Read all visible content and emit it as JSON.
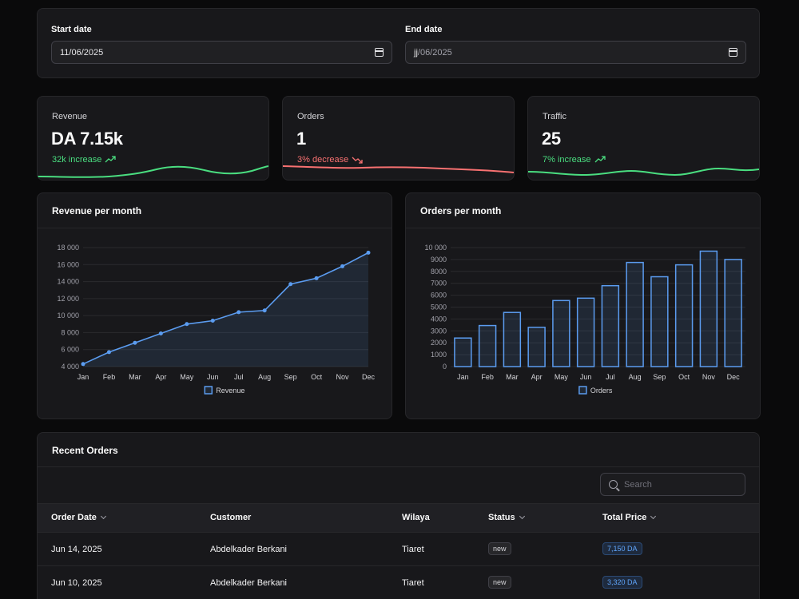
{
  "filters": {
    "start": {
      "label": "Start date",
      "value": "11/06/2025"
    },
    "end": {
      "label": "End date",
      "placeholder_day": "jj",
      "value_rest": "/06/2025"
    }
  },
  "stats": [
    {
      "title": "Revenue",
      "value": "DA 7.15k",
      "change": "32k increase",
      "trend": "up",
      "color": "#4ade80"
    },
    {
      "title": "Orders",
      "value": "1",
      "change": "3% decrease",
      "trend": "down",
      "color": "#f87171"
    },
    {
      "title": "Traffic",
      "value": "25",
      "change": "7% increase",
      "trend": "up",
      "color": "#4ade80"
    }
  ],
  "charts": {
    "revenue_title": "Revenue per month",
    "orders_title": "Orders per month"
  },
  "chart_data": [
    {
      "type": "line",
      "title": "Revenue per month",
      "categories": [
        "Jan",
        "Feb",
        "Mar",
        "Apr",
        "May",
        "Jun",
        "Jul",
        "Aug",
        "Sep",
        "Oct",
        "Nov",
        "Dec"
      ],
      "series": [
        {
          "name": "Revenue",
          "values": [
            4300,
            5700,
            6800,
            7900,
            9000,
            9400,
            10400,
            10600,
            13700,
            14400,
            15800,
            17400
          ]
        }
      ],
      "yticks": [
        4000,
        6000,
        8000,
        10000,
        12000,
        14000,
        16000,
        18000
      ],
      "ytick_labels": [
        "4 000",
        "6 000",
        "8 000",
        "10 000",
        "12 000",
        "14 000",
        "16 000",
        "18 000"
      ],
      "ylim": [
        4000,
        18000
      ],
      "grid": true,
      "legend": "bottom",
      "color": "#5b9cf0"
    },
    {
      "type": "bar",
      "title": "Orders per month",
      "categories": [
        "Jan",
        "Feb",
        "Mar",
        "Apr",
        "May",
        "Jun",
        "Jul",
        "Aug",
        "Sep",
        "Oct",
        "Nov",
        "Dec"
      ],
      "series": [
        {
          "name": "Orders",
          "values": [
            2400,
            3450,
            4550,
            3300,
            5550,
            5750,
            6800,
            8750,
            7550,
            8550,
            9700,
            9000
          ]
        }
      ],
      "yticks": [
        0,
        1000,
        2000,
        3000,
        4000,
        5000,
        6000,
        7000,
        8000,
        9000,
        10000
      ],
      "ytick_labels": [
        "0",
        "1000",
        "2000",
        "3000",
        "4000",
        "5000",
        "6000",
        "7000",
        "8000",
        "9000",
        "10 000"
      ],
      "ylim": [
        0,
        10000
      ],
      "grid": true,
      "legend": "bottom",
      "color": "#5b9cf0"
    }
  ],
  "orders": {
    "title": "Recent Orders",
    "search_placeholder": "Search",
    "columns": {
      "date": "Order Date",
      "customer": "Customer",
      "wilaya": "Wilaya",
      "status": "Status",
      "price": "Total Price"
    },
    "rows": [
      {
        "date": "Jun 14, 2025",
        "customer": "Abdelkader Berkani",
        "wilaya": "Tiaret",
        "status": "new",
        "price": "7,150 DA"
      },
      {
        "date": "Jun 10, 2025",
        "customer": "Abdelkader Berkani",
        "wilaya": "Tiaret",
        "status": "new",
        "price": "3,320 DA"
      }
    ]
  }
}
